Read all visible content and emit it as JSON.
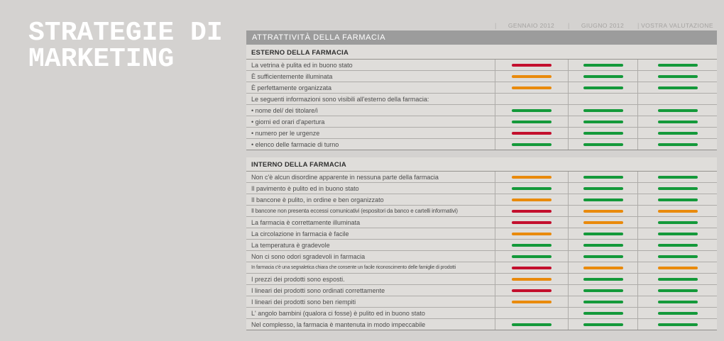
{
  "page": {
    "title_line1": "STRATEGIE DI",
    "title_line2": "MARKETING"
  },
  "table": {
    "title": "ATTRATTIVITÀ DELLA FARMACIA",
    "header_columns": [
      "GENNAIO 2012",
      "GIUGNO 2012",
      "VOSTRA VALUTAZIONE"
    ],
    "colors": {
      "red": "#c30f2d",
      "orange": "#e98a0c",
      "green": "#14993a"
    },
    "sections": [
      {
        "name": "ESTERNO DELLA FARMACIA",
        "rows": [
          {
            "label": "La vetrina è pulita ed in buono stato",
            "ratings": [
              "red",
              "green",
              "green"
            ]
          },
          {
            "label": "È sufficientemente illuminata",
            "ratings": [
              "orange",
              "green",
              "green"
            ]
          },
          {
            "label": "È perfettamente organizzata",
            "ratings": [
              "orange",
              "green",
              "green"
            ]
          },
          {
            "label": "Le seguenti informazioni sono visibili all'esterno della farmacia:",
            "ratings": [
              null,
              null,
              null
            ]
          },
          {
            "label": "• nome del/ dei titolare/i",
            "ratings": [
              "green",
              "green",
              "green"
            ]
          },
          {
            "label": "• giorni ed orari d'apertura",
            "ratings": [
              "green",
              "green",
              "green"
            ]
          },
          {
            "label": "• numero per le urgenze",
            "ratings": [
              "red",
              "green",
              "green"
            ]
          },
          {
            "label": "• elenco delle farmacie di turno",
            "ratings": [
              "green",
              "green",
              "green"
            ]
          }
        ]
      },
      {
        "name": "INTERNO DELLA FARMACIA",
        "rows": [
          {
            "label": "Non c'è alcun disordine apparente in nessuna parte della farmacia",
            "ratings": [
              "orange",
              "green",
              "green"
            ]
          },
          {
            "label": "Il pavimento è pulito ed in buono stato",
            "ratings": [
              "green",
              "green",
              "green"
            ]
          },
          {
            "label": "Il bancone è pulito, in ordine e ben organizzato",
            "ratings": [
              "orange",
              "green",
              "green"
            ]
          },
          {
            "label": "Il bancone non presenta eccessi comunicativi (espositori da banco e cartelli informativi)",
            "ratings": [
              "red",
              "orange",
              "orange"
            ]
          },
          {
            "label": "La farmacia è correttamente illuminata",
            "ratings": [
              "red",
              "orange",
              "green"
            ]
          },
          {
            "label": "La circolazione in farmacia è facile",
            "ratings": [
              "orange",
              "green",
              "green"
            ]
          },
          {
            "label": "La temperatura è gradevole",
            "ratings": [
              "green",
              "green",
              "green"
            ]
          },
          {
            "label": "Non ci sono odori sgradevoli in farmacia",
            "ratings": [
              "green",
              "green",
              "green"
            ]
          },
          {
            "label": "In farmacia c'è una segnaletica chiara che consente un facile riconoscimento delle famiglie di prodotti",
            "ratings": [
              "red",
              "orange",
              "orange"
            ]
          },
          {
            "label": "I prezzi dei prodotti sono esposti.",
            "ratings": [
              "orange",
              "green",
              "green"
            ]
          },
          {
            "label": "I lineari dei prodotti sono ordinati correttamente",
            "ratings": [
              "red",
              "green",
              "green"
            ]
          },
          {
            "label": "I lineari dei prodotti sono ben riempiti",
            "ratings": [
              "orange",
              "green",
              "green"
            ]
          },
          {
            "label": "L' angolo bambini (qualora ci fosse) è pulito ed in buono stato",
            "ratings": [
              null,
              "green",
              "green"
            ]
          },
          {
            "label": "Nel complesso, la farmacia è mantenuta in modo impeccabile",
            "ratings": [
              "green",
              "green",
              "green"
            ]
          }
        ]
      }
    ]
  }
}
